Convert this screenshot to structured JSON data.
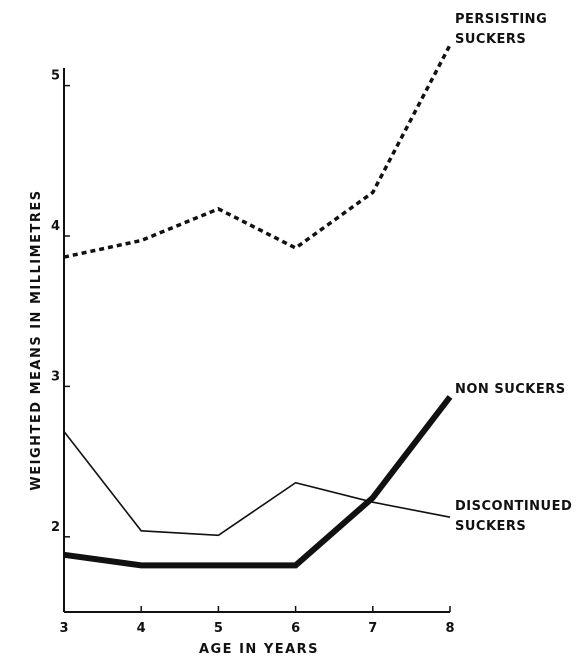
{
  "chart_data": {
    "type": "line",
    "title": "",
    "xlabel": "AGE IN YEARS",
    "ylabel": "WEIGHTED MEANS IN MILLIMETRES",
    "x": [
      3,
      4,
      5,
      6,
      7,
      8
    ],
    "xlim": [
      3,
      8
    ],
    "ylim": [
      1.5,
      5.25
    ],
    "y_ticks": [
      2,
      3,
      4,
      5
    ],
    "x_ticks": [
      3,
      4,
      5,
      6,
      7,
      8
    ],
    "grid": false,
    "legend": "none",
    "series": [
      {
        "name": "PERSISTING SUCKERS",
        "label_lines": [
          "PERSISTING",
          "SUCKERS"
        ],
        "values": [
          3.86,
          3.97,
          4.18,
          3.92,
          4.29,
          5.27
        ],
        "style": "dotted",
        "color": "#111111"
      },
      {
        "name": "NON SUCKERS",
        "label_lines": [
          "NON SUCKERS"
        ],
        "values": [
          1.88,
          1.81,
          1.81,
          1.81,
          2.26,
          2.93
        ],
        "style": "thick",
        "color": "#111111"
      },
      {
        "name": "DISCONTINUED SUCKERS",
        "label_lines": [
          "DISCONTINUED",
          "SUCKERS"
        ],
        "values": [
          2.7,
          2.04,
          2.01,
          2.36,
          2.23,
          2.13
        ],
        "style": "thin",
        "color": "#111111"
      }
    ]
  }
}
